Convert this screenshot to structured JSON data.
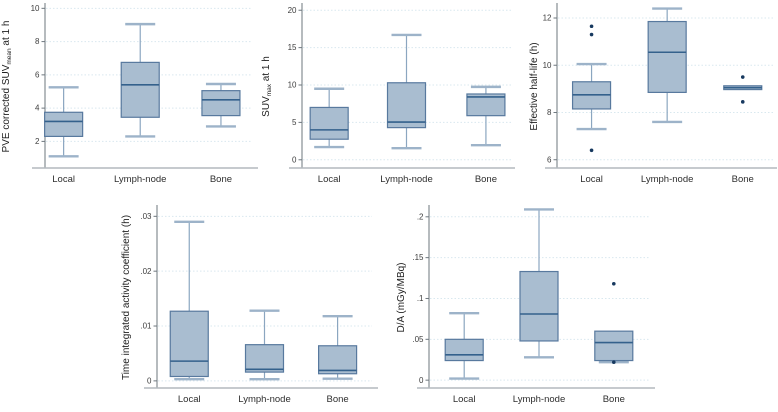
{
  "page": {
    "background": "#ffffff"
  },
  "palette": {
    "box_fill": "#a9bdd0",
    "box_border": "#58799e",
    "median_line": "#34618c",
    "whisker_line": "#8ba6c0",
    "whisker_cap": "#9db3c9",
    "outlier_dot": "#17395f",
    "gridline": "#d9e8ef",
    "y_axis_line": "#6e777e",
    "x_axis_line": "#b3b9be",
    "tick_text": "#3c3c3c",
    "category_text": "#2e2e2e",
    "ylabel_text": "#1f1f1f"
  },
  "chart_data": [
    {
      "id": "pve-suvmean",
      "type": "box",
      "title": "",
      "xlabel": "",
      "ylabel": "PVE corrected SUVmean at 1 h",
      "ylabel_segments": [
        {
          "text": "PVE corrected SUV"
        },
        {
          "text": "mean",
          "sub": true
        },
        {
          "text": " at 1 h"
        }
      ],
      "categories": [
        "Local",
        "Lymph-node",
        "Bone"
      ],
      "ylim": [
        0.4,
        10.2
      ],
      "grid": true,
      "yticks": [
        {
          "value": 2,
          "label": "2"
        },
        {
          "value": 4,
          "label": "4"
        },
        {
          "value": 6,
          "label": "6"
        },
        {
          "value": 8,
          "label": "8"
        },
        {
          "value": 10,
          "label": "10"
        }
      ],
      "series": [
        {
          "category": "Local",
          "min": 1.1,
          "q1": 2.3,
          "median": 3.2,
          "q3": 3.75,
          "max": 5.25,
          "outliers": []
        },
        {
          "category": "Lymph-node",
          "min": 2.3,
          "q1": 3.45,
          "median": 5.4,
          "q3": 6.75,
          "max": 9.05,
          "outliers": []
        },
        {
          "category": "Bone",
          "min": 2.9,
          "q1": 3.55,
          "median": 4.5,
          "q3": 5.05,
          "max": 5.45,
          "outliers": []
        }
      ]
    },
    {
      "id": "suvmax",
      "type": "box",
      "title": "",
      "xlabel": "",
      "ylabel": "SUVmax at 1 h",
      "ylabel_segments": [
        {
          "text": "SUV"
        },
        {
          "text": "max",
          "sub": true
        },
        {
          "text": " at 1 h"
        }
      ],
      "categories": [
        "Local",
        "Lymph-node",
        "Bone"
      ],
      "ylim": [
        -1.1,
        20.7
      ],
      "grid": true,
      "yticks": [
        {
          "value": 0,
          "label": "0"
        },
        {
          "value": 5,
          "label": "5"
        },
        {
          "value": 10,
          "label": "10"
        },
        {
          "value": 15,
          "label": "15"
        },
        {
          "value": 20,
          "label": "20"
        }
      ],
      "series": [
        {
          "category": "Local",
          "min": 1.7,
          "q1": 2.75,
          "median": 4.0,
          "q3": 7.0,
          "max": 9.5,
          "outliers": []
        },
        {
          "category": "Lymph-node",
          "min": 1.55,
          "q1": 4.3,
          "median": 5.05,
          "q3": 10.3,
          "max": 16.7,
          "outliers": []
        },
        {
          "category": "Bone",
          "min": 1.95,
          "q1": 5.9,
          "median": 8.4,
          "q3": 8.8,
          "max": 9.75,
          "outliers": []
        }
      ]
    },
    {
      "id": "effective-half-life",
      "type": "box",
      "title": "",
      "xlabel": "",
      "ylabel": "Effective half-life (h)",
      "ylabel_segments": [
        {
          "text": "Effective half-life (h)"
        }
      ],
      "categories": [
        "Local",
        "Lymph-node",
        "Bone"
      ],
      "ylim": [
        5.65,
        12.55
      ],
      "grid": true,
      "yticks": [
        {
          "value": 6,
          "label": "6"
        },
        {
          "value": 8,
          "label": "8"
        },
        {
          "value": 10,
          "label": "10"
        },
        {
          "value": 12,
          "label": "12"
        }
      ],
      "series": [
        {
          "category": "Local",
          "min": 7.3,
          "q1": 8.15,
          "median": 8.75,
          "q3": 9.3,
          "max": 10.05,
          "outliers": [
            11.65,
            11.3,
            6.4
          ]
        },
        {
          "category": "Lymph-node",
          "min": 7.6,
          "q1": 8.85,
          "median": 10.55,
          "q3": 11.85,
          "max": 12.4,
          "outliers": []
        },
        {
          "category": "Bone",
          "min": 8.97,
          "q1": 8.97,
          "median": 9.05,
          "q3": 9.13,
          "max": 9.13,
          "outliers": [
            9.5,
            8.45
          ]
        }
      ]
    },
    {
      "id": "time-integrated-activity-coefficient",
      "type": "box",
      "title": "",
      "xlabel": "",
      "ylabel": "Time integrated activity coefficient (h)",
      "ylabel_segments": [
        {
          "text": "Time integrated activity coefficient (h)"
        }
      ],
      "categories": [
        "Local",
        "Lymph-node",
        "Bone"
      ],
      "ylim": [
        -0.0013,
        0.0317
      ],
      "grid": true,
      "yticks": [
        {
          "value": 0,
          "label": "0"
        },
        {
          "value": 0.01,
          "label": ".01"
        },
        {
          "value": 0.02,
          "label": ".02"
        },
        {
          "value": 0.03,
          "label": ".03"
        }
      ],
      "series": [
        {
          "category": "Local",
          "min": 0.0003,
          "q1": 0.0008,
          "median": 0.0036,
          "q3": 0.0127,
          "max": 0.029,
          "outliers": []
        },
        {
          "category": "Lymph-node",
          "min": 0.0003,
          "q1": 0.0016,
          "median": 0.0021,
          "q3": 0.0066,
          "max": 0.0128,
          "outliers": []
        },
        {
          "category": "Bone",
          "min": 0.0004,
          "q1": 0.0013,
          "median": 0.0019,
          "q3": 0.0064,
          "max": 0.0118,
          "outliers": []
        }
      ]
    },
    {
      "id": "dose-per-activity",
      "type": "box",
      "title": "",
      "xlabel": "",
      "ylabel": "D/A (mGy/MBq)",
      "ylabel_segments": [
        {
          "text": "D/A (mGy/MBq)"
        }
      ],
      "categories": [
        "Local",
        "Lymph-node",
        "Bone"
      ],
      "ylim": [
        -0.0096,
        0.212
      ],
      "grid": true,
      "yticks": [
        {
          "value": 0,
          "label": "0"
        },
        {
          "value": 0.05,
          "label": ".05"
        },
        {
          "value": 0.1,
          "label": ".1"
        },
        {
          "value": 0.15,
          "label": ".15"
        },
        {
          "value": 0.2,
          "label": ".2"
        }
      ],
      "series": [
        {
          "category": "Local",
          "min": 0.002,
          "q1": 0.024,
          "median": 0.031,
          "q3": 0.05,
          "max": 0.082,
          "outliers": []
        },
        {
          "category": "Lymph-node",
          "min": 0.028,
          "q1": 0.048,
          "median": 0.081,
          "q3": 0.133,
          "max": 0.209,
          "outliers": []
        },
        {
          "category": "Bone",
          "min": 0.022,
          "q1": 0.024,
          "median": 0.046,
          "q3": 0.06,
          "max": 0.06,
          "outliers": [
            0.118,
            0.022
          ]
        }
      ]
    }
  ]
}
